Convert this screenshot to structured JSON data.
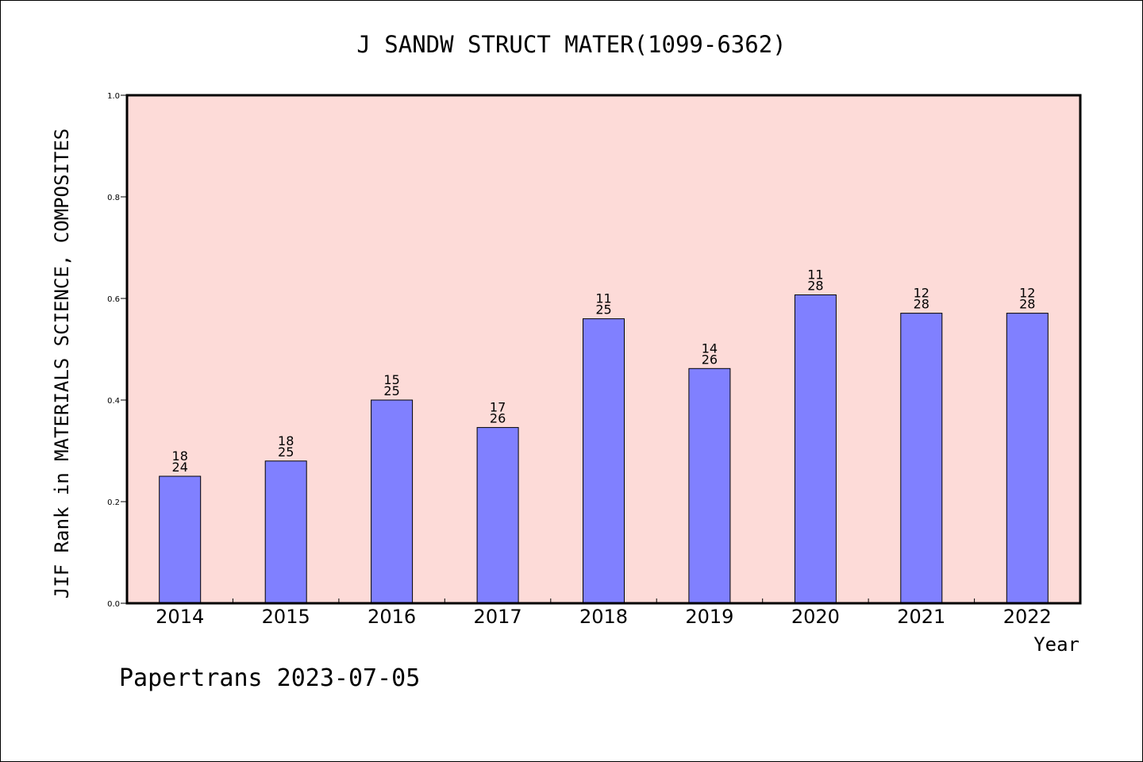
{
  "footer": {
    "text": "Papertrans 2023-07-05"
  },
  "colors": {
    "plot_background": "#FDDBD8",
    "bar_fill": "#8080FF",
    "bar_stroke": "#000000",
    "axis": "#000000"
  },
  "chart_data": {
    "type": "bar",
    "title": "J SANDW STRUCT MATER(1099-6362)",
    "xlabel": "Year",
    "ylabel": "JIF Rank in MATERIALS SCIENCE, COMPOSITES",
    "ylim": [
      0,
      1.0
    ],
    "yticks": [
      "0.0",
      "0.2",
      "0.4",
      "0.6",
      "0.8",
      "1.0"
    ],
    "grid": false,
    "categories": [
      "2014",
      "2015",
      "2016",
      "2017",
      "2018",
      "2019",
      "2020",
      "2021",
      "2022"
    ],
    "values": [
      0.25,
      0.28,
      0.4,
      0.346,
      0.56,
      0.462,
      0.607,
      0.571,
      0.571
    ],
    "labels": [
      {
        "top": "18",
        "bottom": "24"
      },
      {
        "top": "18",
        "bottom": "25"
      },
      {
        "top": "15",
        "bottom": "25"
      },
      {
        "top": "17",
        "bottom": "26"
      },
      {
        "top": "11",
        "bottom": "25"
      },
      {
        "top": "14",
        "bottom": "26"
      },
      {
        "top": "11",
        "bottom": "28"
      },
      {
        "top": "12",
        "bottom": "28"
      },
      {
        "top": "12",
        "bottom": "28"
      }
    ]
  }
}
